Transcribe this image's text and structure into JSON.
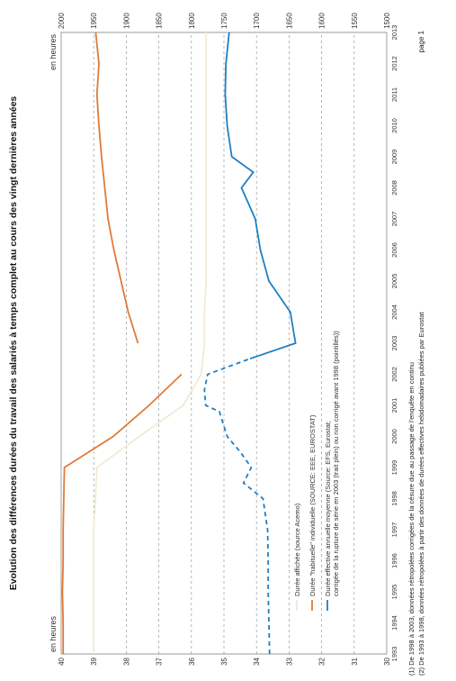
{
  "chart_data": {
    "type": "line",
    "title": "Evolution des différences durées du travail des salariés à temps complet au cours des vingt dernières années",
    "left_axis_label": "en heures",
    "right_axis_label": "en heures",
    "x": [
      1993,
      1994,
      1995,
      1996,
      1997,
      1998,
      1999,
      2000,
      2001,
      2002,
      2003,
      2004,
      2005,
      2006,
      2007,
      2008,
      2009,
      2010,
      2011,
      2012,
      2013
    ],
    "left_ylim": [
      30,
      40
    ],
    "left_ticks": [
      30,
      31,
      32,
      33,
      34,
      35,
      36,
      37,
      38,
      39,
      40
    ],
    "right_ylim": [
      1500,
      2000
    ],
    "right_ticks": [
      1500,
      1550,
      1600,
      1650,
      1700,
      1750,
      1800,
      1850,
      1900,
      1950,
      2000
    ],
    "grid": true,
    "legend_position": "bottom-left",
    "series": [
      {
        "name": "Durée affichée (source Acemo)",
        "color": "#f2ead7",
        "axis": "left",
        "style": "solid",
        "points": [
          [
            1993,
            39.0
          ],
          [
            1994,
            39.0
          ],
          [
            1995,
            39.0
          ],
          [
            1996,
            39.0
          ],
          [
            1997,
            39.0
          ],
          [
            1998,
            38.95
          ],
          [
            1999,
            38.9
          ],
          [
            2000,
            37.6
          ],
          [
            2001,
            36.25
          ],
          [
            2002,
            35.7
          ],
          [
            2003,
            35.6
          ],
          [
            2004,
            35.6
          ],
          [
            2005,
            35.55
          ],
          [
            2006,
            35.55
          ],
          [
            2007,
            35.55
          ],
          [
            2008,
            35.55
          ],
          [
            2009,
            35.55
          ],
          [
            2010,
            35.55
          ],
          [
            2011,
            35.55
          ],
          [
            2012,
            35.55
          ],
          [
            2013,
            35.55
          ]
        ]
      },
      {
        "name": "Durée \"habituelle\" individuelle (SOURCE: EEE, EUROSTAT)",
        "color": "#e07b39",
        "axis": "right",
        "style": "solid",
        "points": [
          [
            1993,
            1997
          ],
          [
            1994,
            1997
          ],
          [
            1995,
            1998
          ],
          [
            1996,
            1997
          ],
          [
            1997,
            1997
          ],
          [
            1998,
            1996
          ],
          [
            1999,
            1995
          ],
          [
            2000,
            1920
          ],
          [
            2001,
            1865
          ],
          [
            2002,
            1815
          ],
          [
            null,
            null
          ],
          [
            2003,
            1882
          ],
          [
            2004,
            1897
          ],
          [
            2005,
            1908
          ],
          [
            2006,
            1919
          ],
          [
            2007,
            1928
          ],
          [
            2008,
            1933
          ],
          [
            2009,
            1938
          ],
          [
            2010,
            1942
          ],
          [
            2011,
            1945
          ],
          [
            2012,
            1942
          ],
          [
            2013,
            1947
          ]
        ]
      },
      {
        "name": "Durée effective annuelle moyenne (Source: EFS, Eurostat; corrigée de la rupture de série en 2003 (trait plein) ou non corrigé avant 1998 (pointillés))",
        "color": "#1f7fc4",
        "axis": "right",
        "style": "mixed",
        "points": [
          [
            1993,
            1680
          ],
          [
            1994,
            1681
          ],
          [
            1995,
            1682
          ],
          [
            1996,
            1682
          ],
          [
            1997,
            1683
          ],
          [
            1998,
            1690
          ],
          [
            1998.5,
            1720
          ],
          [
            1999,
            1708
          ],
          [
            1999.5,
            1725
          ],
          [
            2000,
            1745
          ],
          [
            2000.8,
            1757
          ],
          [
            2001,
            1778
          ],
          [
            2001.5,
            1780
          ],
          [
            2002,
            1775
          ],
          [
            2002.5,
            1710
          ],
          [
            2003,
            1640
          ],
          [
            2004,
            1648
          ],
          [
            2005,
            1681
          ],
          [
            2006,
            1694
          ],
          [
            2007,
            1702
          ],
          [
            2008,
            1723
          ],
          [
            2008.5,
            1705
          ],
          [
            2009,
            1738
          ],
          [
            2010,
            1745
          ],
          [
            2011,
            1748
          ],
          [
            2012,
            1747
          ],
          [
            2013,
            1742
          ]
        ],
        "dashed_until_index": 14
      }
    ],
    "footnotes": [
      "(1) De 1998 à 2003, données rétropolées corrigées de la césure due au passage de l'enquête en continu",
      "(2) De 1993 à 1998, données rétropolées à partir des données de durées effectives hebdomadaires publiées par Eurostat"
    ],
    "page_label": "page 1"
  }
}
